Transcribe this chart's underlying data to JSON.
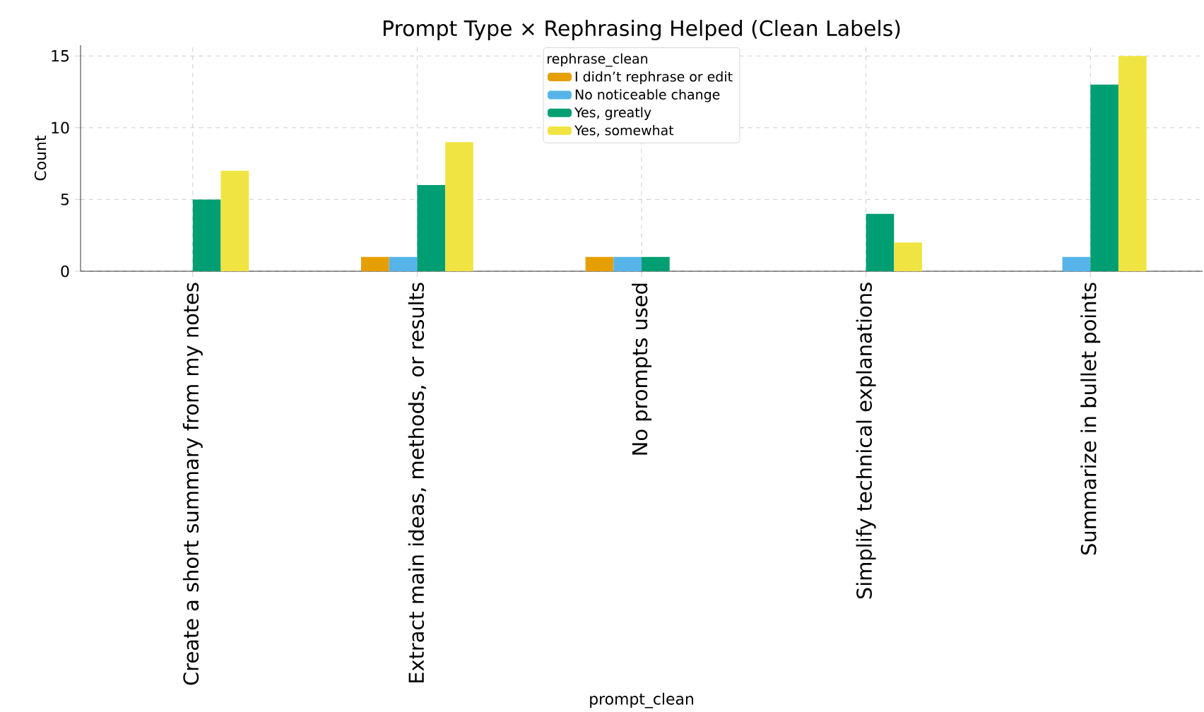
{
  "chart_data": {
    "type": "bar",
    "title": "Prompt Type × Rephrasing Helped (Clean Labels)",
    "xlabel": "prompt_clean",
    "ylabel": "Count",
    "legend_title": "rephrase_clean",
    "categories": [
      "Create a short summary from my notes",
      "Extract main ideas, methods, or results",
      "No prompts used",
      "Simplify technical explanations",
      "Summarize in bullet points"
    ],
    "series": [
      {
        "name": "I didn’t rephrase or edit",
        "color": "#e69f00",
        "values": [
          0,
          1,
          1,
          0,
          0
        ]
      },
      {
        "name": "No noticeable change",
        "color": "#56b4e9",
        "values": [
          0,
          1,
          1,
          0,
          1
        ]
      },
      {
        "name": "Yes, greatly",
        "color": "#009e73",
        "values": [
          5,
          6,
          1,
          4,
          13
        ]
      },
      {
        "name": "Yes, somewhat",
        "color": "#f0e442",
        "values": [
          7,
          9,
          0,
          2,
          15
        ]
      }
    ],
    "ylim": [
      0,
      15.75
    ],
    "yticks": [
      0,
      5,
      10,
      15
    ],
    "grid": true,
    "legend": "top"
  }
}
